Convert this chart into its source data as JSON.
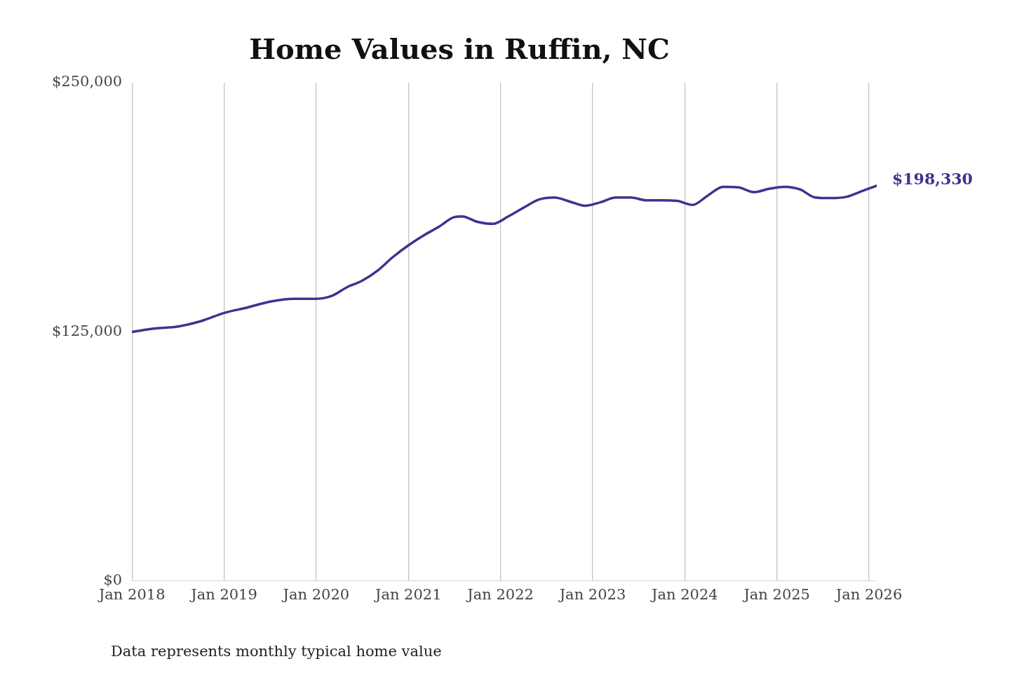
{
  "chart_data": {
    "type": "line",
    "title": "Home Values in Ruffin, NC",
    "x": [
      "2018-01",
      "2018-04",
      "2018-07",
      "2018-10",
      "2019-01",
      "2019-04",
      "2019-07",
      "2019-10",
      "2020-01",
      "2020-03",
      "2020-05",
      "2020-07",
      "2020-09",
      "2020-11",
      "2021-01",
      "2021-03",
      "2021-05",
      "2021-07",
      "2021-08",
      "2021-10",
      "2021-12",
      "2022-02",
      "2022-04",
      "2022-06",
      "2022-08",
      "2022-10",
      "2022-12",
      "2023-02",
      "2023-04",
      "2023-06",
      "2023-08",
      "2023-10",
      "2023-12",
      "2024-02",
      "2024-04",
      "2024-06",
      "2024-08",
      "2024-10",
      "2024-12",
      "2025-02",
      "2025-04",
      "2025-06",
      "2025-08",
      "2025-10",
      "2025-12",
      "2026-02"
    ],
    "series": [
      {
        "color": "#3b3491",
        "values": [
          125000,
          126700,
          127700,
          130400,
          134500,
          137200,
          140200,
          141600,
          141600,
          143000,
          147400,
          150700,
          155800,
          162600,
          168400,
          173400,
          177800,
          182600,
          182900,
          180200,
          179200,
          182900,
          187300,
          191400,
          192400,
          190400,
          188300,
          190000,
          192400,
          192400,
          191000,
          191000,
          190700,
          188700,
          193400,
          197800,
          197500,
          195100,
          196800,
          197800,
          196500,
          192400,
          192100,
          192700,
          195500,
          198330
        ]
      }
    ],
    "xticks": [
      {
        "value": "2018-01",
        "label": "Jan 2018"
      },
      {
        "value": "2019-01",
        "label": "Jan 2019"
      },
      {
        "value": "2020-01",
        "label": "Jan 2020"
      },
      {
        "value": "2021-01",
        "label": "Jan 2021"
      },
      {
        "value": "2022-01",
        "label": "Jan 2022"
      },
      {
        "value": "2023-01",
        "label": "Jan 2023"
      },
      {
        "value": "2024-01",
        "label": "Jan 2024"
      },
      {
        "value": "2025-01",
        "label": "Jan 2025"
      },
      {
        "value": "2026-01",
        "label": "Jan 2026"
      }
    ],
    "xlim": [
      "2018-01",
      "2026-02"
    ],
    "ylim": [
      0,
      250000
    ],
    "yticks": [
      {
        "value": 0,
        "label": "$0"
      },
      {
        "value": 125000,
        "label": "$125,000"
      },
      {
        "value": 250000,
        "label": "$250,000"
      }
    ],
    "grid": "x",
    "marker": "none",
    "line_style": "solid",
    "legend": false,
    "annotations": [
      {
        "text": "$198,330",
        "x": "2026-02",
        "y": 198330
      },
      "Data represents monthly typical home value"
    ]
  }
}
